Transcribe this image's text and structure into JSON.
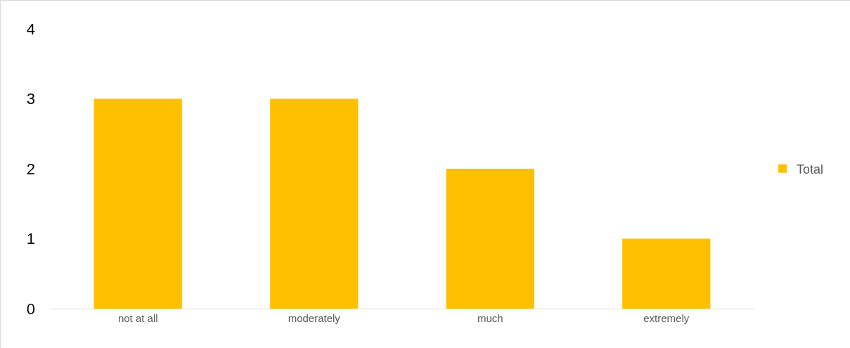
{
  "chart_data": {
    "type": "bar",
    "categories": [
      "not at all",
      "moderately",
      "much",
      "extremely"
    ],
    "series": [
      {
        "name": "Total",
        "color": "#ffc000",
        "values": [
          3,
          3,
          2,
          1
        ]
      }
    ],
    "ylim": [
      0,
      4
    ],
    "yticks": [
      0,
      1,
      2,
      3,
      4
    ],
    "grid": false,
    "legend": "right"
  }
}
